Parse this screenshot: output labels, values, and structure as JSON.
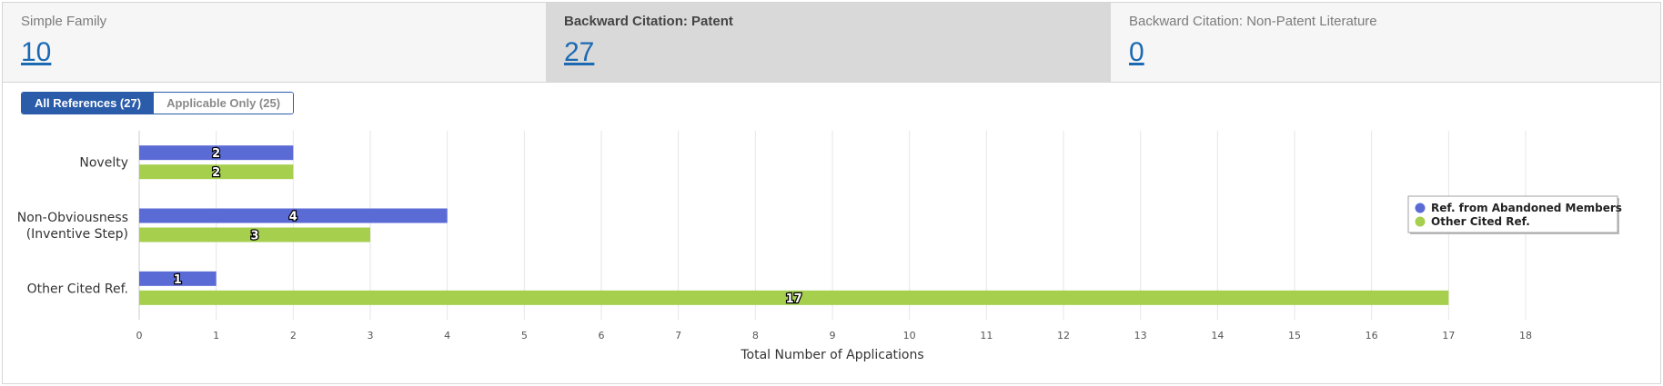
{
  "stats": [
    {
      "label": "Simple Family",
      "value": "10",
      "active": false
    },
    {
      "label": "Backward Citation: Patent",
      "value": "27",
      "active": true
    },
    {
      "label": "Backward Citation: Non-Patent Literature",
      "value": "0",
      "active": false
    }
  ],
  "toggle": {
    "all_label": "All References (27)",
    "applicable_label": "Applicable Only (25)"
  },
  "chart_data": {
    "type": "bar",
    "orientation": "horizontal",
    "categories": [
      "Novelty",
      "Non-Obviousness\n(Inventive Step)",
      "Other Cited Ref."
    ],
    "series": [
      {
        "name": "Ref. from Abandoned Members",
        "values": [
          2,
          4,
          1
        ],
        "color": "#5b6bd6"
      },
      {
        "name": "Other Cited Ref.",
        "values": [
          2,
          3,
          17
        ],
        "color": "#a6cf4e"
      }
    ],
    "xlabel": "Total Number of Applications",
    "xlim": [
      0,
      18
    ],
    "xticks": [
      0,
      1,
      2,
      3,
      4,
      5,
      6,
      7,
      8,
      9,
      10,
      11,
      12,
      13,
      14,
      15,
      16,
      17,
      18
    ],
    "grid": true,
    "legend_position": "right",
    "data_labels": true
  }
}
